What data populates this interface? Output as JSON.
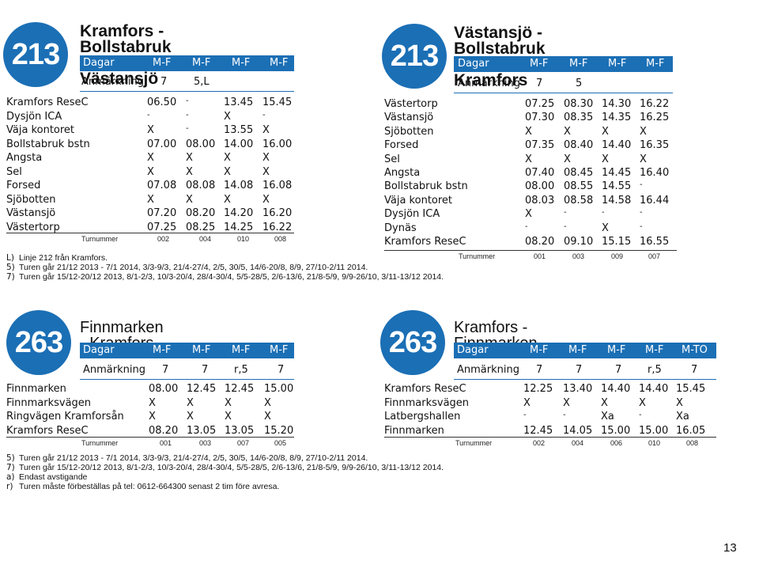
{
  "r1": {
    "number": "213",
    "title_line1": "Kramfors - Bollstabruk -",
    "title_line2": "Västansjö",
    "header": [
      "Dagar",
      "M-F",
      "M-F",
      "M-F",
      "M-F"
    ],
    "anm": [
      "Anmärkning",
      "7",
      "5,L",
      "",
      ""
    ],
    "rows": [
      [
        "Kramfors ReseC",
        "06.50",
        "-",
        "13.45",
        "15.45"
      ],
      [
        "Dysjön ICA",
        "-",
        "-",
        "X",
        "-"
      ],
      [
        "Väja kontoret",
        "X",
        "-",
        "13.55",
        "X"
      ],
      [
        "Bollstabruk bstn",
        "07.00",
        "08.00",
        "14.00",
        "16.00"
      ],
      [
        "Angsta",
        "X",
        "X",
        "X",
        "X"
      ],
      [
        "Sel",
        "X",
        "X",
        "X",
        "X"
      ],
      [
        "Forsed",
        "07.08",
        "08.08",
        "14.08",
        "16.08"
      ],
      [
        "Sjöbotten",
        "X",
        "X",
        "X",
        "X"
      ],
      [
        "Västansjö",
        "07.20",
        "08.20",
        "14.20",
        "16.20"
      ],
      [
        "Västertorp",
        "07.25",
        "08.25",
        "14.25",
        "16.22"
      ]
    ],
    "turn": [
      "Turnummer",
      "002",
      "004",
      "010",
      "008"
    ]
  },
  "r2": {
    "number": "213",
    "title_line1": "Västansjö - Bollstabruk -",
    "title_line2": "Kramfors",
    "header": [
      "Dagar",
      "M-F",
      "M-F",
      "M-F",
      "M-F"
    ],
    "anm": [
      "Anmärkning",
      "7",
      "5",
      "",
      ""
    ],
    "rows": [
      [
        "Västertorp",
        "07.25",
        "08.30",
        "14.30",
        "16.22"
      ],
      [
        "Västansjö",
        "07.30",
        "08.35",
        "14.35",
        "16.25"
      ],
      [
        "Sjöbotten",
        "X",
        "X",
        "X",
        "X"
      ],
      [
        "Forsed",
        "07.35",
        "08.40",
        "14.40",
        "16.35"
      ],
      [
        "Sel",
        "X",
        "X",
        "X",
        "X"
      ],
      [
        "Angsta",
        "07.40",
        "08.45",
        "14.45",
        "16.40"
      ],
      [
        "Bollstabruk bstn",
        "08.00",
        "08.55",
        "14.55",
        "-"
      ],
      [
        "Väja kontoret",
        "08.03",
        "08.58",
        "14.58",
        "16.44"
      ],
      [
        "Dysjön ICA",
        "X",
        "-",
        "-",
        "-"
      ],
      [
        "Dynäs",
        "-",
        "-",
        "X",
        "-"
      ],
      [
        "Kramfors ReseC",
        "08.20",
        "09.10",
        "15.15",
        "16.55"
      ]
    ],
    "turn": [
      "Turnummer",
      "001",
      "003",
      "009",
      "007"
    ]
  },
  "notes1": [
    {
      "key": "L)",
      "text": "Linje 212 från Kramfors."
    },
    {
      "key": "5)",
      "text": "Turen går 21/12 2013 - 7/1 2014, 3/3-9/3, 21/4-27/4, 2/5, 30/5, 14/6-20/8, 8/9, 27/10-2/11 2014."
    },
    {
      "key": "7)",
      "text": "Turen går 15/12-20/12 2013, 8/1-2/3, 10/3-20/4, 28/4-30/4, 5/5-28/5, 2/6-13/6, 21/8-5/9, 9/9-26/10, 3/11-13/12 2014."
    }
  ],
  "r3": {
    "number": "263",
    "title_line1": "Finnmarken - Kramfors",
    "header": [
      "Dagar",
      "M-F",
      "M-F",
      "M-F",
      "M-F"
    ],
    "anm": [
      "Anmärkning",
      "7",
      "7",
      "r,5",
      "7"
    ],
    "rows": [
      [
        "Finnmarken",
        "08.00",
        "12.45",
        "12.45",
        "15.00"
      ],
      [
        "Finnmarksvägen",
        "X",
        "X",
        "X",
        "X"
      ],
      [
        "Ringvägen Kramforsån",
        "X",
        "X",
        "X",
        "X"
      ],
      [
        "Kramfors ReseC",
        "08.20",
        "13.05",
        "13.05",
        "15.20"
      ]
    ],
    "turn": [
      "Turnummer",
      "001",
      "003",
      "007",
      "005"
    ]
  },
  "r4": {
    "number": "263",
    "title_line1": "Kramfors - Finnmarken",
    "header": [
      "Dagar",
      "M-F",
      "M-F",
      "M-F",
      "M-F",
      "M-TO"
    ],
    "anm": [
      "Anmärkning",
      "7",
      "7",
      "7",
      "r,5",
      "7"
    ],
    "rows": [
      [
        "Kramfors ReseC",
        "12.25",
        "13.40",
        "14.40",
        "14.40",
        "15.45"
      ],
      [
        "Finnmarksvägen",
        "X",
        "X",
        "X",
        "X",
        "X"
      ],
      [
        "Latbergshallen",
        "-",
        "-",
        "Xa",
        "-",
        "Xa"
      ],
      [
        "Finnmarken",
        "12.45",
        "14.05",
        "15.00",
        "15.00",
        "16.05"
      ]
    ],
    "turn": [
      "Turnummer",
      "002",
      "004",
      "006",
      "010",
      "008"
    ]
  },
  "notes2": [
    {
      "key": "5)",
      "text": "Turen går 21/12 2013 - 7/1 2014, 3/3-9/3, 21/4-27/4, 2/5, 30/5, 14/6-20/8, 8/9, 27/10-2/11 2014."
    },
    {
      "key": "7)",
      "text": "Turen går 15/12-20/12 2013, 8/1-2/3, 10/3-20/4, 28/4-30/4, 5/5-28/5, 2/6-13/6, 21/8-5/9, 9/9-26/10, 3/11-13/12 2014."
    },
    {
      "key": "a)",
      "text": "Endast avstigande"
    },
    {
      "key": "r)",
      "text": "Turen måste förbeställas på tel: 0612-664300 senast 2 tim före avresa."
    }
  ],
  "page_number": "13",
  "colors": {
    "accent": "#1b6fb5"
  }
}
